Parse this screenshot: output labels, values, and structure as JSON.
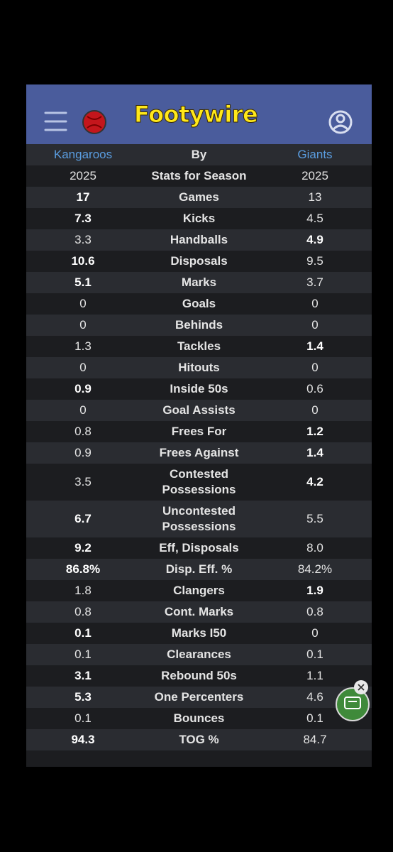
{
  "header": {
    "brand": "Footywire"
  },
  "table": {
    "columns": [
      "Kangaroos",
      "By",
      "Giants"
    ],
    "rows": [
      {
        "left": "2025",
        "label": "Stats for Season",
        "right": "2025",
        "bold": null
      },
      {
        "left": "17",
        "label": "Games",
        "right": "13",
        "bold": "left"
      },
      {
        "left": "7.3",
        "label": "Kicks",
        "right": "4.5",
        "bold": "left"
      },
      {
        "left": "3.3",
        "label": "Handballs",
        "right": "4.9",
        "bold": "right"
      },
      {
        "left": "10.6",
        "label": "Disposals",
        "right": "9.5",
        "bold": "left"
      },
      {
        "left": "5.1",
        "label": "Marks",
        "right": "3.7",
        "bold": "left"
      },
      {
        "left": "0",
        "label": "Goals",
        "right": "0",
        "bold": null
      },
      {
        "left": "0",
        "label": "Behinds",
        "right": "0",
        "bold": null
      },
      {
        "left": "1.3",
        "label": "Tackles",
        "right": "1.4",
        "bold": "right"
      },
      {
        "left": "0",
        "label": "Hitouts",
        "right": "0",
        "bold": null
      },
      {
        "left": "0.9",
        "label": "Inside 50s",
        "right": "0.6",
        "bold": "left"
      },
      {
        "left": "0",
        "label": "Goal Assists",
        "right": "0",
        "bold": null
      },
      {
        "left": "0.8",
        "label": "Frees For",
        "right": "1.2",
        "bold": "right"
      },
      {
        "left": "0.9",
        "label": "Frees Against",
        "right": "1.4",
        "bold": "right"
      },
      {
        "left": "3.5",
        "label": "Contested Possessions",
        "right": "4.2",
        "bold": "right"
      },
      {
        "left": "6.7",
        "label": "Uncontested Possessions",
        "right": "5.5",
        "bold": "left"
      },
      {
        "left": "9.2",
        "label": "Eff, Disposals",
        "right": "8.0",
        "bold": "left"
      },
      {
        "left": "86.8%",
        "label": "Disp. Eff. %",
        "right": "84.2%",
        "bold": "left"
      },
      {
        "left": "1.8",
        "label": "Clangers",
        "right": "1.9",
        "bold": "right"
      },
      {
        "left": "0.8",
        "label": "Cont. Marks",
        "right": "0.8",
        "bold": null
      },
      {
        "left": "0.1",
        "label": "Marks I50",
        "right": "0",
        "bold": "left"
      },
      {
        "left": "0.1",
        "label": "Clearances",
        "right": "0.1",
        "bold": null
      },
      {
        "left": "3.1",
        "label": "Rebound 50s",
        "right": "1.1",
        "bold": "left"
      },
      {
        "left": "5.3",
        "label": "One Percenters",
        "right": "4.6",
        "bold": "left"
      },
      {
        "left": "0.1",
        "label": "Bounces",
        "right": "0.1",
        "bold": null
      },
      {
        "left": "94.3",
        "label": "TOG %",
        "right": "84.7",
        "bold": "left"
      }
    ]
  }
}
